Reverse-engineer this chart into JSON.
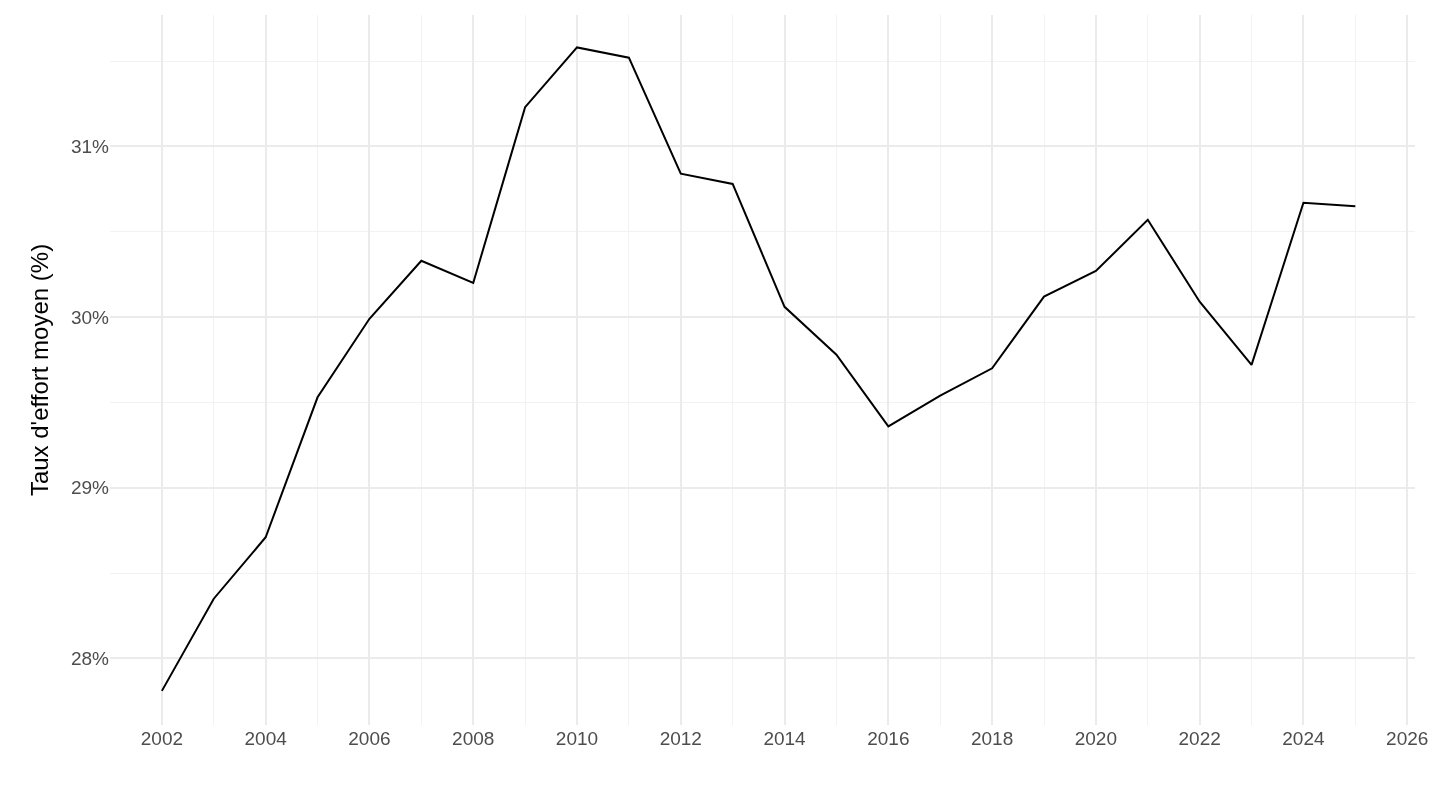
{
  "chart_data": {
    "type": "line",
    "ylabel": "Taux d'effort moyen (%)",
    "x": [
      2002,
      2003,
      2004,
      2005,
      2006,
      2007,
      2008,
      2009,
      2010,
      2011,
      2012,
      2013,
      2014,
      2015,
      2016,
      2017,
      2018,
      2019,
      2020,
      2021,
      2022,
      2023,
      2024,
      2025
    ],
    "series": [
      {
        "color": "#000000",
        "values": [
          27.81,
          28.35,
          28.71,
          29.53,
          29.99,
          30.33,
          30.2,
          31.23,
          31.58,
          31.52,
          30.84,
          30.78,
          30.06,
          29.78,
          29.36,
          29.54,
          29.7,
          30.12,
          30.27,
          30.57,
          30.09,
          29.72,
          30.67,
          30.65
        ]
      }
    ],
    "xlim": [
      2001,
      2026.15
    ],
    "xticks": [
      2002,
      2004,
      2006,
      2008,
      2010,
      2012,
      2014,
      2016,
      2018,
      2020,
      2022,
      2024,
      2026
    ],
    "ylim": [
      27.61,
      31.77
    ],
    "yticks": [
      {
        "value": 28,
        "label": "28%"
      },
      {
        "value": 29,
        "label": "29%"
      },
      {
        "value": 30,
        "label": "30%"
      },
      {
        "value": 31,
        "label": "31%"
      }
    ],
    "grid": true,
    "marker": "none",
    "line_style": "solid"
  }
}
